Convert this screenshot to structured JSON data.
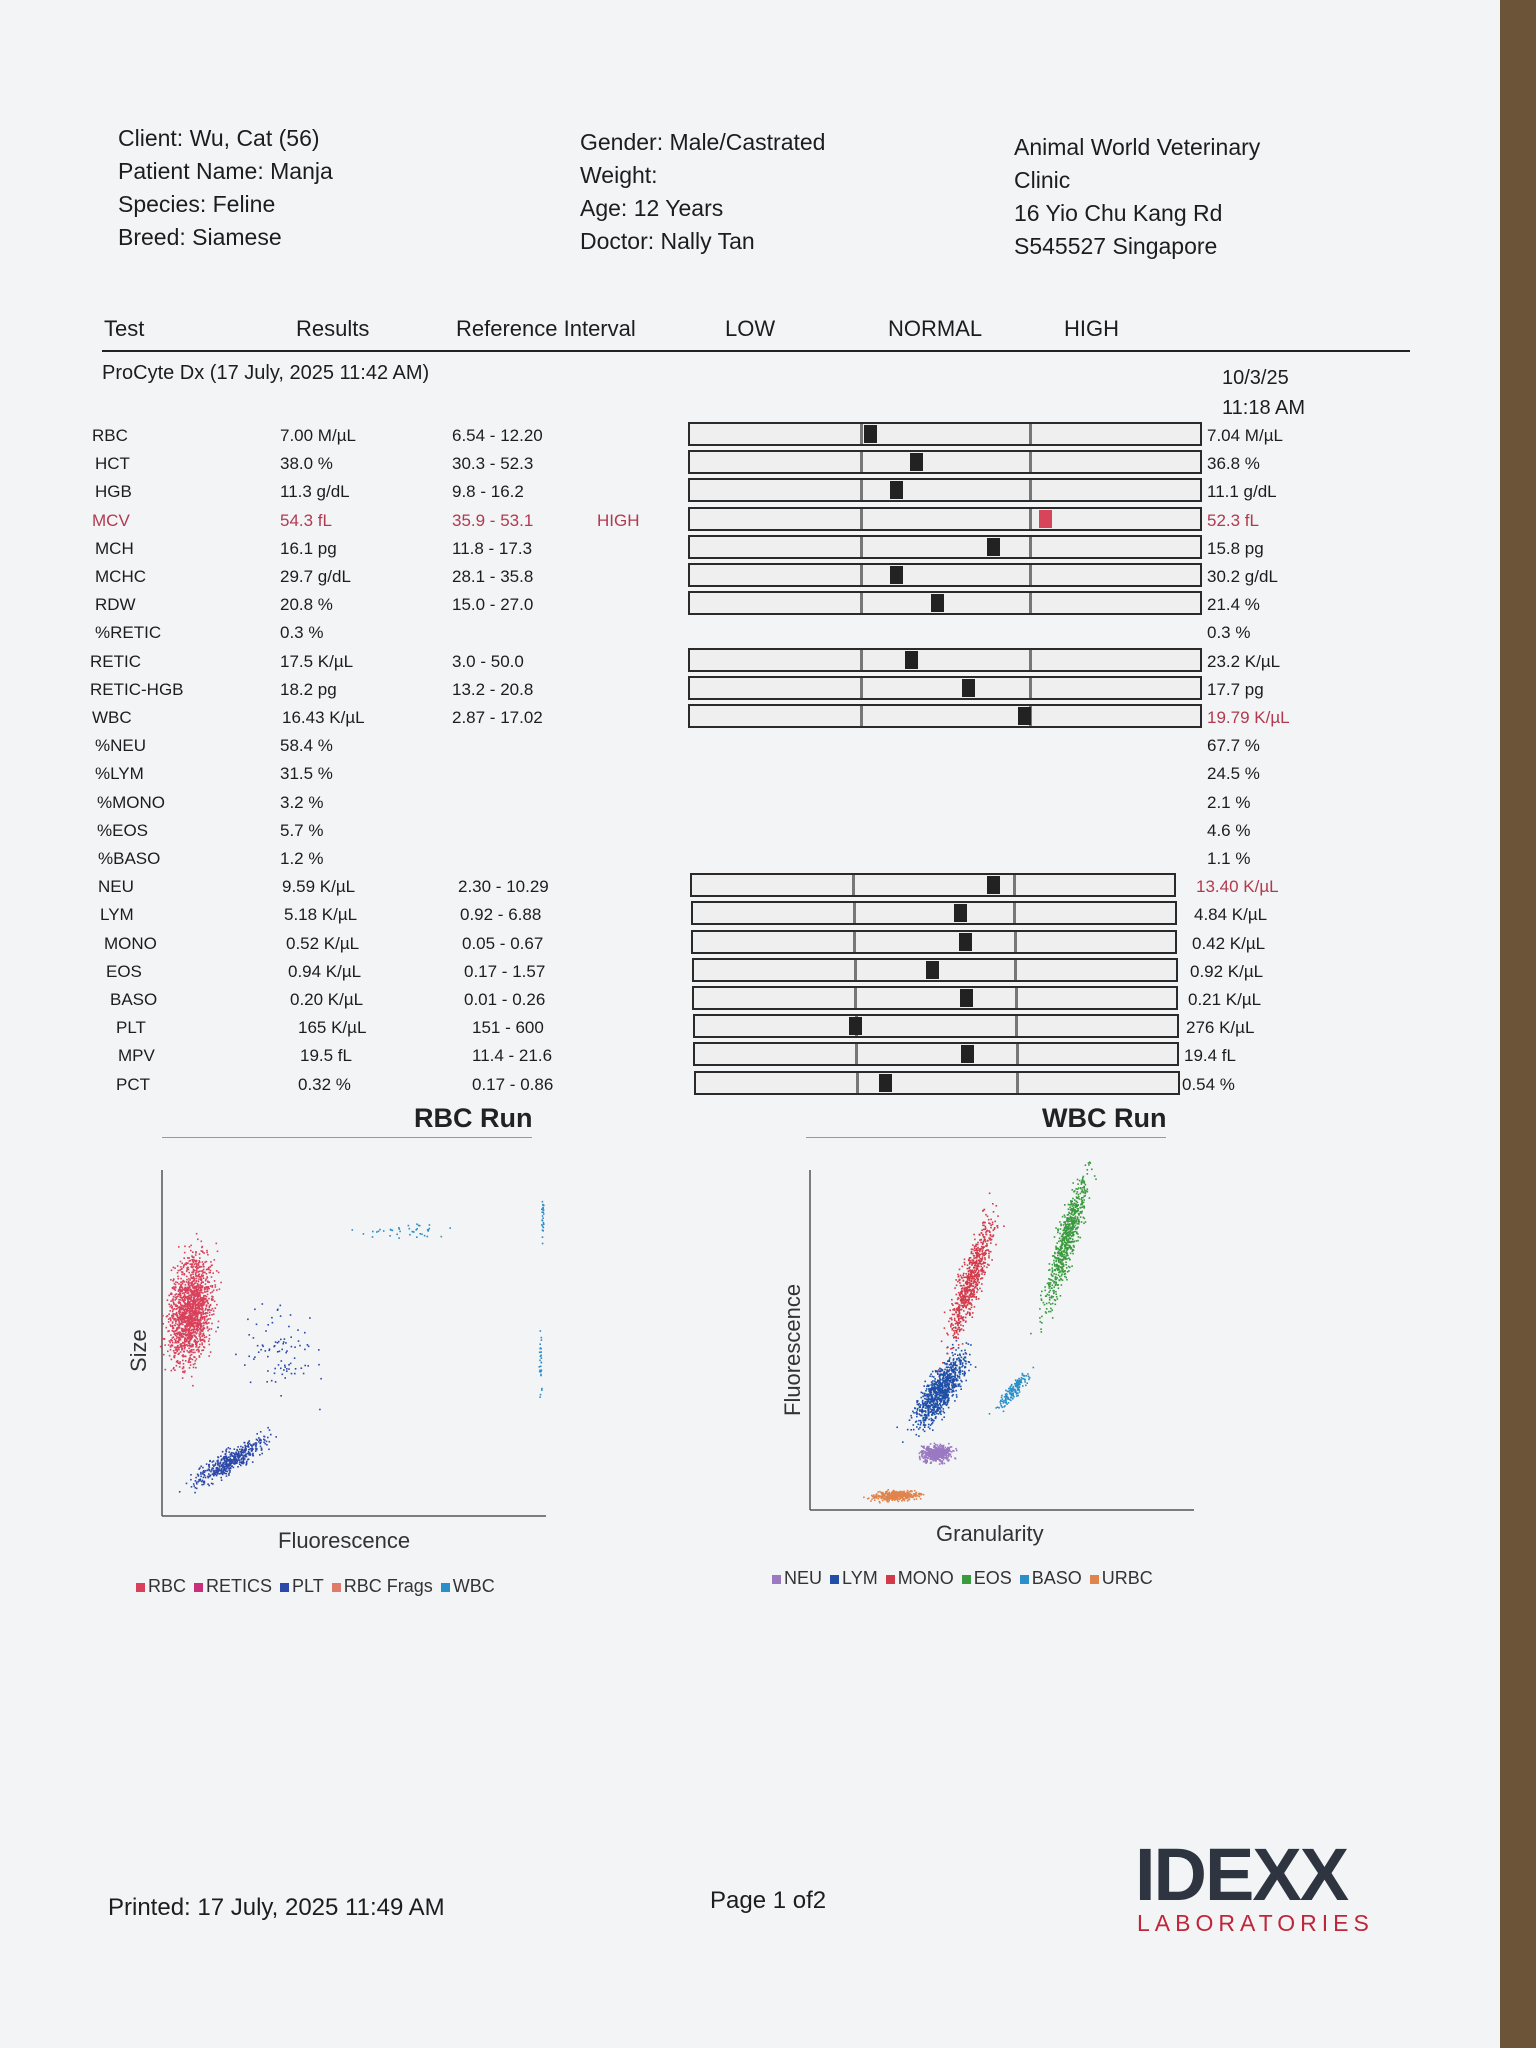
{
  "patient": {
    "client": "Client: Wu, Cat (56)",
    "name": "Patient Name: Manja",
    "species": "Species: Feline",
    "breed": "Breed: Siamese",
    "gender": "Gender: Male/Castrated",
    "weight": "Weight:",
    "age": "Age: 12 Years",
    "doctor": "Doctor: Nally Tan"
  },
  "clinic": {
    "line1": "Animal World Veterinary",
    "line2": "Clinic",
    "line3": "16 Yio Chu Kang Rd",
    "line4": "S545527 Singapore"
  },
  "columns": {
    "test": "Test",
    "results": "Results",
    "reference": "Reference Interval",
    "low": "LOW",
    "normal": "NORMAL",
    "high": "HIGH"
  },
  "run": {
    "title": "ProCyte Dx (17 July, 2025 11:42 AM)",
    "prev_date": "10/3/25",
    "prev_time": "11:18 AM"
  },
  "results": [
    {
      "name": "RBC",
      "result": "7.00 M/µL",
      "ref": "6.54 - 12.20",
      "flag": "",
      "prev": "7.04 M/µL",
      "marker": 0.35
    },
    {
      "name": "HCT",
      "result": "38.0 %",
      "ref": "30.3 - 52.3",
      "flag": "",
      "prev": "36.8 %",
      "marker": 0.44
    },
    {
      "name": "HGB",
      "result": "11.3 g/dL",
      "ref": "9.8 - 16.2",
      "flag": "",
      "prev": "11.1 g/dL",
      "marker": 0.4
    },
    {
      "name": "MCV",
      "result": "54.3 fL",
      "ref": "35.9 - 53.1",
      "flag": "HIGH",
      "prev": "52.3 fL",
      "marker": 0.69
    },
    {
      "name": "MCH",
      "result": "16.1 pg",
      "ref": "11.8 - 17.3",
      "flag": "",
      "prev": "15.8 pg",
      "marker": 0.59
    },
    {
      "name": "MCHC",
      "result": "29.7 g/dL",
      "ref": "28.1 - 35.8",
      "flag": "",
      "prev": "30.2 g/dL",
      "marker": 0.4
    },
    {
      "name": "RDW",
      "result": "20.8 %",
      "ref": "15.0 - 27.0",
      "flag": "",
      "prev": "21.4 %",
      "marker": 0.48
    },
    {
      "name": "%RETIC",
      "result": "0.3 %",
      "ref": "",
      "flag": "",
      "prev": "0.3 %",
      "marker": null
    },
    {
      "name": "RETIC",
      "result": "17.5 K/µL",
      "ref": "3.0 - 50.0",
      "flag": "",
      "prev": "23.2 K/µL",
      "marker": 0.43
    },
    {
      "name": "RETIC-HGB",
      "result": "18.2 pg",
      "ref": "13.2 - 20.8",
      "flag": "",
      "prev": "17.7 pg",
      "marker": 0.54
    },
    {
      "name": "WBC",
      "result": "16.43 K/µL",
      "ref": "2.87 - 17.02",
      "flag": "",
      "prev": "19.79 K/µL",
      "prev_flag": "high",
      "marker": 0.65
    },
    {
      "name": "%NEU",
      "result": "58.4 %",
      "ref": "",
      "flag": "",
      "prev": "67.7 %",
      "marker": null
    },
    {
      "name": "%LYM",
      "result": "31.5 %",
      "ref": "",
      "flag": "",
      "prev": "24.5 %",
      "marker": null
    },
    {
      "name": "%MONO",
      "result": "3.2 %",
      "ref": "",
      "flag": "",
      "prev": "2.1 %",
      "marker": null
    },
    {
      "name": "%EOS",
      "result": "5.7 %",
      "ref": "",
      "flag": "",
      "prev": "4.6 %",
      "marker": null
    },
    {
      "name": "%BASO",
      "result": "1.2 %",
      "ref": "",
      "flag": "",
      "prev": "1.1 %",
      "marker": null
    },
    {
      "name": "NEU",
      "result": "9.59 K/µL",
      "ref": "2.30 - 10.29",
      "flag": "",
      "prev": "13.40 K/µL",
      "prev_flag": "high",
      "marker": 0.62
    },
    {
      "name": "LYM",
      "result": "5.18 K/µL",
      "ref": "0.92 - 6.88",
      "flag": "",
      "prev": "4.84 K/µL",
      "marker": 0.55
    },
    {
      "name": "MONO",
      "result": "0.52 K/µL",
      "ref": "0.05 - 0.67",
      "flag": "",
      "prev": "0.42 K/µL",
      "marker": 0.56
    },
    {
      "name": "EOS",
      "result": "0.94 K/µL",
      "ref": "0.17 - 1.57",
      "flag": "",
      "prev": "0.92 K/µL",
      "marker": 0.49
    },
    {
      "name": "BASO",
      "result": "0.20 K/µL",
      "ref": "0.01 - 0.26",
      "flag": "",
      "prev": "0.21 K/µL",
      "marker": 0.56
    },
    {
      "name": "PLT",
      "result": "165 K/µL",
      "ref": "151 - 600",
      "flag": "",
      "prev": "276 K/µL",
      "marker": 0.33
    },
    {
      "name": "MPV",
      "result": "19.5 fL",
      "ref": "11.4 - 21.6",
      "flag": "",
      "prev": "19.4 fL",
      "marker": 0.56
    },
    {
      "name": "PCT",
      "result": "0.32 %",
      "ref": "0.17 - 0.86",
      "flag": "",
      "prev": "0.54 %",
      "marker": 0.39
    }
  ],
  "rbc_run": {
    "title": "RBC Run",
    "xlabel": "Fluorescence",
    "ylabel": "Size",
    "legend": [
      {
        "label": "RBC",
        "color": "#d9405a"
      },
      {
        "label": "RETICS",
        "color": "#c8307a"
      },
      {
        "label": "PLT",
        "color": "#2c48a8"
      },
      {
        "label": "RBC Frags",
        "color": "#e07a6a"
      },
      {
        "label": "WBC",
        "color": "#2a8fc8"
      }
    ]
  },
  "wbc_run": {
    "title": "WBC Run",
    "xlabel": "Granularity",
    "ylabel": "Fluorescence",
    "legend": [
      {
        "label": "NEU",
        "color": "#9b79c2"
      },
      {
        "label": "LYM",
        "color": "#1f4fa8"
      },
      {
        "label": "MONO",
        "color": "#d33a4a"
      },
      {
        "label": "EOS",
        "color": "#3a9a3e"
      },
      {
        "label": "BASO",
        "color": "#2a8fc8"
      },
      {
        "label": "URBC",
        "color": "#e0844c"
      }
    ]
  },
  "footer": {
    "printed": "Printed: 17 July, 2025 11:49 AM",
    "page": "Page 1 of2",
    "brand": "IDEXX",
    "brand_sub": "LABORATORIES"
  }
}
